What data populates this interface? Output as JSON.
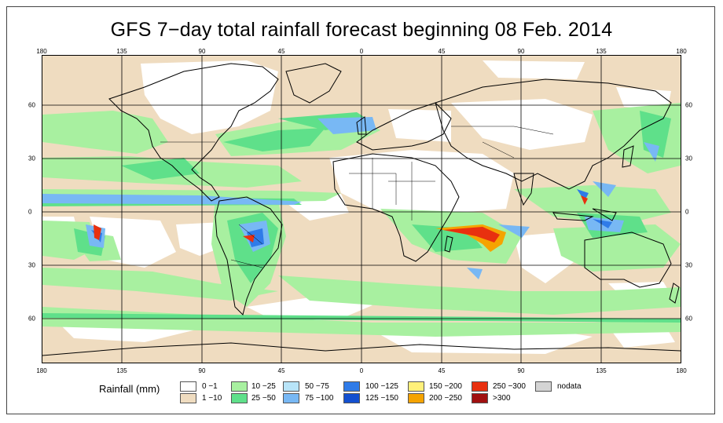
{
  "title": "GFS 7−day total rainfall forecast beginning 08 Feb. 2014",
  "axes": {
    "lon_labels": [
      "180",
      "135",
      "90",
      "45",
      "0",
      "45",
      "90",
      "135",
      "180"
    ],
    "lat_labels": [
      "60",
      "30",
      "0",
      "30",
      "60"
    ]
  },
  "legend": {
    "title": "Rainfall (mm)",
    "items": [
      {
        "label": "0 −1",
        "color": "#ffffff"
      },
      {
        "label": "1 −10",
        "color": "#efdcc0"
      },
      {
        "label": "10 −25",
        "color": "#a8f0a0"
      },
      {
        "label": "25 −50",
        "color": "#5fe08a"
      },
      {
        "label": "50 −75",
        "color": "#b8e4f8"
      },
      {
        "label": "75 −100",
        "color": "#78b8f4"
      },
      {
        "label": "100 −125",
        "color": "#2f7be8"
      },
      {
        "label": "125 −150",
        "color": "#1350d0"
      },
      {
        "label": "150 −200",
        "color": "#fff07a"
      },
      {
        "label": "200 −250",
        "color": "#f5a300"
      },
      {
        "label": "250 −300",
        "color": "#e8300f"
      },
      {
        "label": ">300",
        "color": "#a01010"
      },
      {
        "label": "nodata",
        "color": "#d4d4d4"
      }
    ]
  }
}
